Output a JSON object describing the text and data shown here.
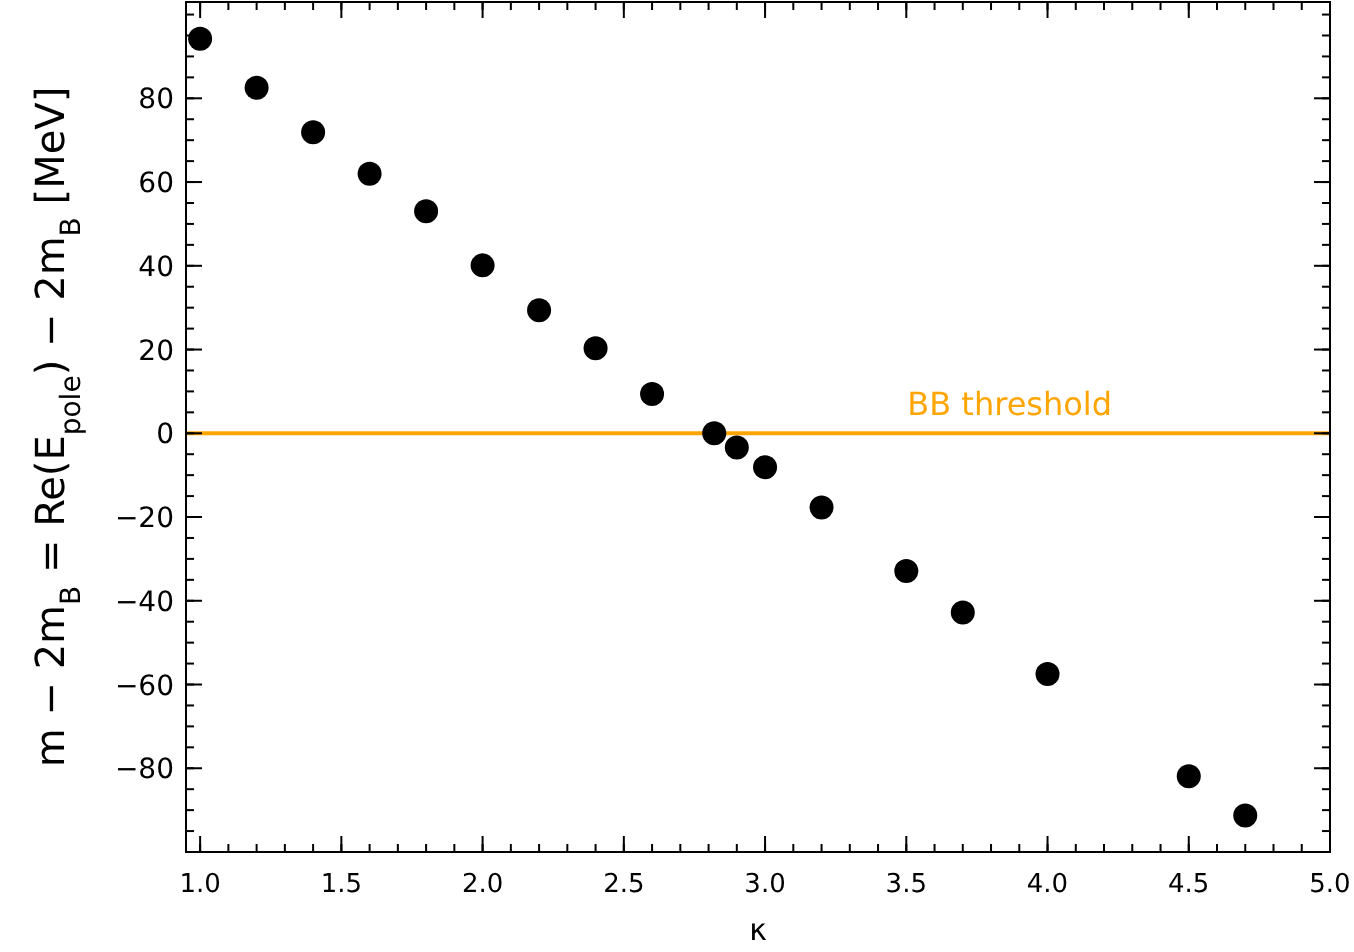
{
  "chart_data": {
    "type": "scatter",
    "xlabel": "κ",
    "ylabel": "m − 2m$_{B}$ = Re(E$_{pole}$) − 2m$_{B}$ [MeV]",
    "x": [
      1.0,
      1.2,
      1.4,
      1.6,
      1.8,
      2.0,
      2.2,
      2.4,
      2.6,
      2.82,
      2.9,
      3.0,
      3.2,
      3.5,
      3.7,
      4.0,
      4.5,
      4.7
    ],
    "series": [
      {
        "color": "#000000",
        "values": [
          94.2,
          82.5,
          71.9,
          62,
          53,
          40.1,
          29.4,
          20.3,
          9.4,
          0,
          -3.4,
          -8.1,
          -17.7,
          -32.9,
          -42.8,
          -57.5,
          -81.9,
          -91.3
        ]
      }
    ],
    "xlim": [
      0.95,
      5.0
    ],
    "ylim": [
      -100,
      103
    ],
    "xticks": [
      {
        "value": 1,
        "label": "1.0"
      },
      {
        "value": 1.5,
        "label": "1.5"
      },
      {
        "value": 2,
        "label": "2.0"
      },
      {
        "value": 2.5,
        "label": "2.5"
      },
      {
        "value": 3,
        "label": "3.0"
      },
      {
        "value": 3.5,
        "label": "3.5"
      },
      {
        "value": 4,
        "label": "4.0"
      },
      {
        "value": 4.5,
        "label": "4.5"
      },
      {
        "value": 5,
        "label": "5.0"
      }
    ],
    "yticks": [
      -80,
      -60,
      -40,
      -20,
      0,
      20,
      40,
      60,
      80
    ],
    "ref_lines": [
      {
        "axis": "y",
        "value": 0,
        "label": "BB threshold",
        "color": "#ffa500"
      }
    ],
    "marker": "circle",
    "grid": false
  }
}
